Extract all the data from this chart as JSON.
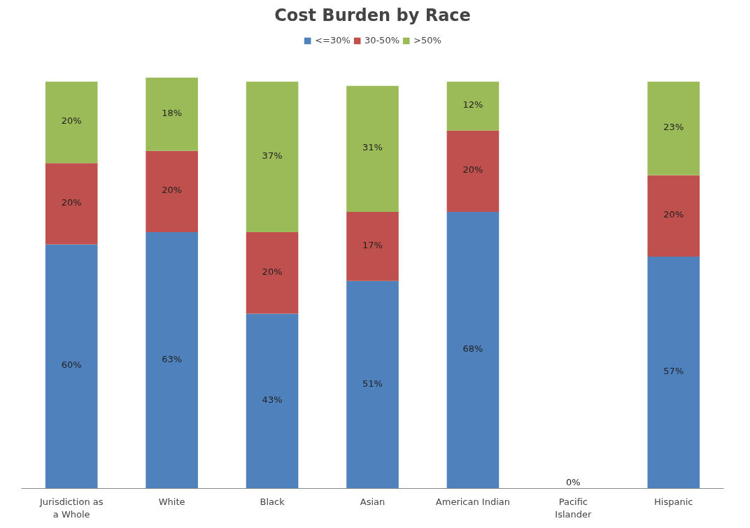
{
  "chart_data": {
    "type": "bar",
    "title": "Cost Burden by Race",
    "stacked": true,
    "legend": "top",
    "categories": [
      "Jurisdiction as a Whole",
      "White",
      "Black",
      "Asian",
      "American Indian",
      "Pacific Islander",
      "Hispanic"
    ],
    "series": [
      {
        "name": "<=30%",
        "color": "#4f81bd",
        "values": [
          60,
          63,
          43,
          51,
          68,
          0,
          57
        ],
        "value_labels": [
          "60%",
          "63%",
          "43%",
          "51%",
          "68%",
          "0%",
          "57%"
        ]
      },
      {
        "name": "30-50%",
        "color": "#c0504d",
        "values": [
          20,
          20,
          20,
          17,
          20,
          0,
          20
        ],
        "value_labels": [
          "20%",
          "20%",
          "20%",
          "17%",
          "20%",
          null,
          "20%"
        ]
      },
      {
        "name": ">50%",
        "color": "#9bbb59",
        "values": [
          20,
          18,
          37,
          31,
          12,
          0,
          23
        ],
        "value_labels": [
          "20%",
          "18%",
          "37%",
          "31%",
          "12%",
          null,
          "23%"
        ]
      }
    ]
  }
}
